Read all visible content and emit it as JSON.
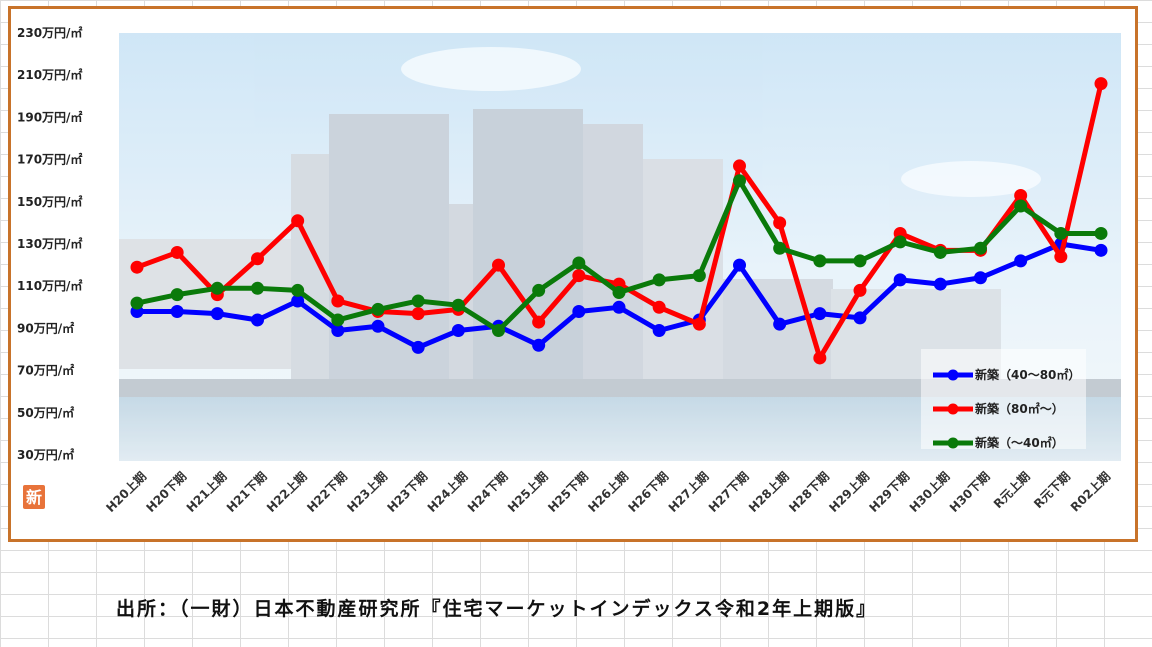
{
  "chart_data": {
    "type": "line",
    "categories": [
      "H20上期",
      "H20下期",
      "H21上期",
      "H21下期",
      "H22上期",
      "H22下期",
      "H23上期",
      "H23下期",
      "H24上期",
      "H24下期",
      "H25上期",
      "H25下期",
      "H26上期",
      "H26下期",
      "H27上期",
      "H27下期",
      "H28上期",
      "H28下期",
      "H29上期",
      "H29下期",
      "H30上期",
      "H30下期",
      "R元上期",
      "R元下期",
      "R02上期"
    ],
    "y_ticks": [
      "30万円/㎡",
      "50万円/㎡",
      "70万円/㎡",
      "90万円/㎡",
      "110万円/㎡",
      "130万円/㎡",
      "150万円/㎡",
      "170万円/㎡",
      "190万円/㎡",
      "210万円/㎡",
      "230万円/㎡"
    ],
    "ylim": [
      30,
      230
    ],
    "grid": false,
    "legend_position": "bottom-right",
    "series": [
      {
        "name": "新築（40～80㎡）",
        "color": "#0000ff",
        "values": [
          98,
          98,
          97,
          94,
          103,
          89,
          91,
          81,
          89,
          91,
          82,
          98,
          100,
          89,
          94,
          120,
          92,
          97,
          95,
          113,
          111,
          114,
          122,
          130,
          127
        ]
      },
      {
        "name": "新築（80㎡～）",
        "color": "#ff0000",
        "values": [
          119,
          126,
          106,
          123,
          141,
          103,
          98,
          97,
          99,
          120,
          93,
          115,
          111,
          100,
          92,
          167,
          140,
          76,
          108,
          135,
          127,
          127,
          153,
          124,
          206
        ]
      },
      {
        "name": "新築（～40㎡）",
        "color": "#0a7a0a",
        "values": [
          102,
          106,
          109,
          109,
          108,
          94,
          99,
          103,
          101,
          89,
          108,
          121,
          107,
          113,
          115,
          160,
          128,
          122,
          122,
          131,
          126,
          128,
          148,
          135,
          135
        ]
      }
    ]
  },
  "badge": {
    "label": "新",
    "color": "#e8733a"
  },
  "source_note": "出所：（一財）日本不動産研究所『住宅マーケットインデックス令和2年上期版』"
}
